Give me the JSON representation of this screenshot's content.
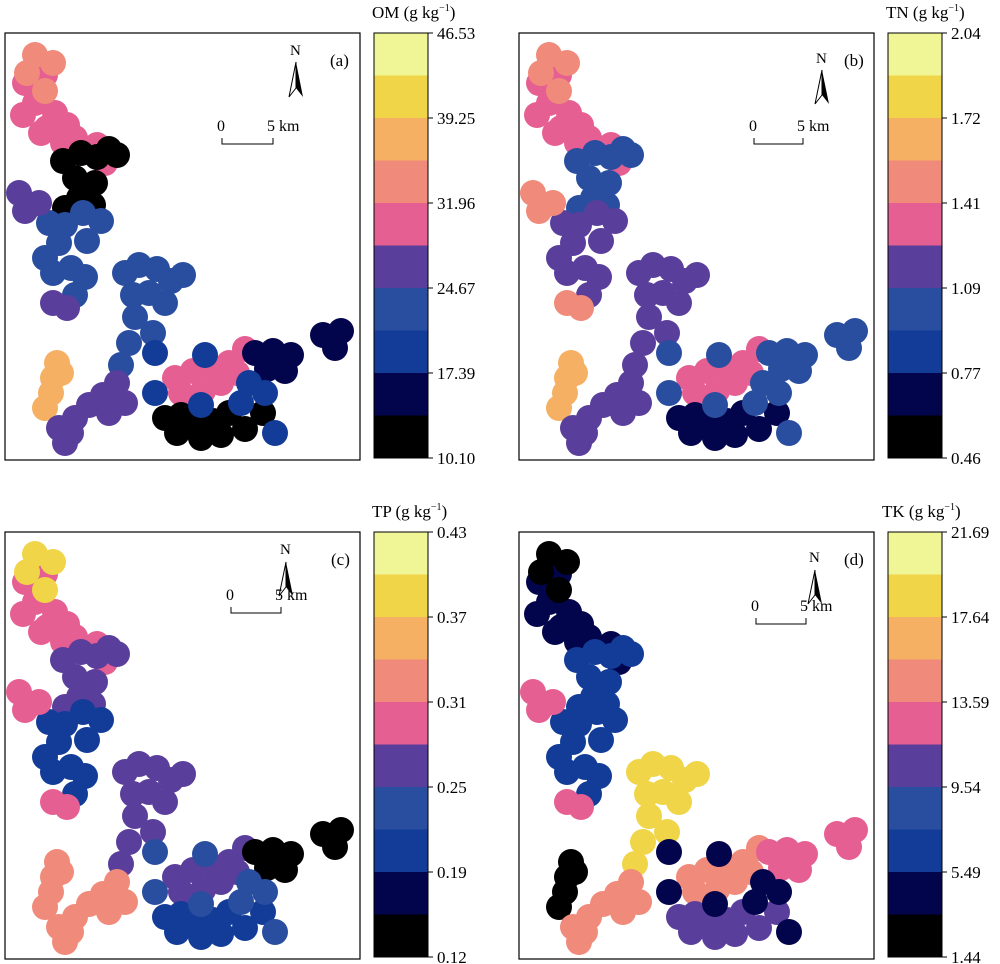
{
  "palette": [
    "#000000",
    "#03054c",
    "#123c98",
    "#2a4e9f",
    "#5a3e9b",
    "#e65f92",
    "#f08a7a",
    "#f5b063",
    "#f0d548",
    "#f0f596"
  ],
  "panels": [
    {
      "id": "a",
      "letter": "(a)",
      "title": "OM (g kg",
      "ticks": [
        "46.53",
        "39.25",
        "31.96",
        "24.67",
        "17.39",
        "10.10"
      ],
      "north": "N",
      "scale_zero": "0",
      "scale_five": "5 km",
      "zones": [
        {
          "name": "nw-cluster",
          "level": 5
        },
        {
          "name": "nw-top",
          "level": 6
        },
        {
          "name": "north-dark",
          "level": 0
        },
        {
          "name": "upper-mid",
          "level": 3
        },
        {
          "name": "west-arm",
          "level": 4
        },
        {
          "name": "center-arm",
          "level": 3
        },
        {
          "name": "sw-hot",
          "level": 7
        },
        {
          "name": "south-arm",
          "level": 4
        },
        {
          "name": "east-hot",
          "level": 5
        },
        {
          "name": "se-dark",
          "level": 0
        },
        {
          "name": "east-dark",
          "level": 1
        },
        {
          "name": "middle",
          "level": 2
        }
      ]
    },
    {
      "id": "b",
      "letter": "(b)",
      "title": "TN (g kg",
      "ticks": [
        "2.04",
        "1.72",
        "1.41",
        "1.09",
        "0.77",
        "0.46"
      ],
      "north": "N",
      "scale_zero": "0",
      "scale_five": "5 km",
      "zones": [
        {
          "name": "nw-cluster",
          "level": 5
        },
        {
          "name": "nw-top",
          "level": 6
        },
        {
          "name": "north-dark",
          "level": 3
        },
        {
          "name": "upper-mid",
          "level": 4
        },
        {
          "name": "west-arm",
          "level": 6
        },
        {
          "name": "center-arm",
          "level": 4
        },
        {
          "name": "sw-hot",
          "level": 7
        },
        {
          "name": "south-arm",
          "level": 4
        },
        {
          "name": "east-hot",
          "level": 5
        },
        {
          "name": "se-dark",
          "level": 1
        },
        {
          "name": "east-dark",
          "level": 3
        },
        {
          "name": "middle",
          "level": 3
        }
      ]
    },
    {
      "id": "c",
      "letter": "(c)",
      "title": "TP (g kg",
      "ticks": [
        "0.43",
        "0.37",
        "0.31",
        "0.25",
        "0.19",
        "0.12"
      ],
      "north": "N",
      "scale_zero": "0",
      "scale_five": "5 km",
      "zones": [
        {
          "name": "nw-cluster",
          "level": 5
        },
        {
          "name": "nw-top",
          "level": 8
        },
        {
          "name": "north-dark",
          "level": 4
        },
        {
          "name": "upper-mid",
          "level": 2
        },
        {
          "name": "west-arm",
          "level": 5
        },
        {
          "name": "center-arm",
          "level": 4
        },
        {
          "name": "sw-hot",
          "level": 6
        },
        {
          "name": "south-arm",
          "level": 6
        },
        {
          "name": "east-hot",
          "level": 4
        },
        {
          "name": "se-dark",
          "level": 2
        },
        {
          "name": "east-dark",
          "level": 0
        },
        {
          "name": "middle",
          "level": 3
        }
      ]
    },
    {
      "id": "d",
      "letter": "(d)",
      "title": "TK (g kg",
      "ticks": [
        "21.69",
        "17.64",
        "13.59",
        "9.54",
        "5.49",
        "1.44"
      ],
      "north": "N",
      "scale_zero": "0",
      "scale_five": "5 km",
      "zones": [
        {
          "name": "nw-cluster",
          "level": 1
        },
        {
          "name": "nw-top",
          "level": 0
        },
        {
          "name": "north-dark",
          "level": 2
        },
        {
          "name": "upper-mid",
          "level": 2
        },
        {
          "name": "west-arm",
          "level": 5
        },
        {
          "name": "center-arm",
          "level": 8
        },
        {
          "name": "sw-hot",
          "level": 0
        },
        {
          "name": "south-arm",
          "level": 6
        },
        {
          "name": "east-hot",
          "level": 6
        },
        {
          "name": "se-dark",
          "level": 4
        },
        {
          "name": "east-dark",
          "level": 5
        },
        {
          "name": "middle",
          "level": 1
        }
      ]
    }
  ]
}
